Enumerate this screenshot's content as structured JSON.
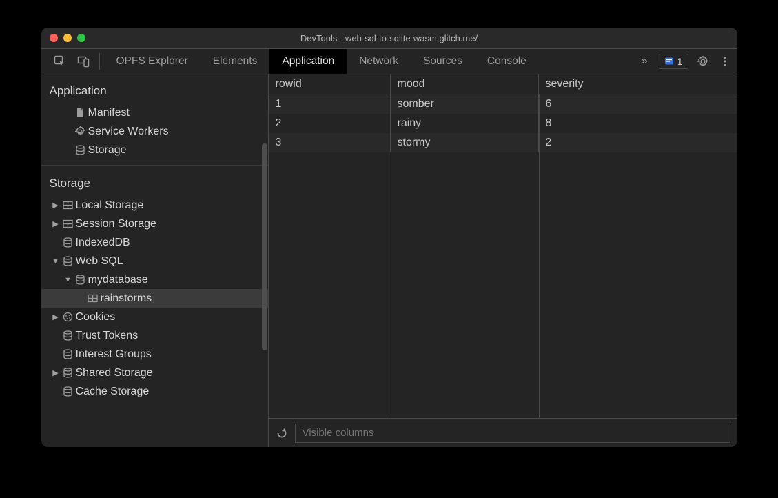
{
  "window": {
    "title": "DevTools - web-sql-to-sqlite-wasm.glitch.me/",
    "traffic_colors": {
      "close": "#ff5f57",
      "min": "#febc2e",
      "max": "#28c840"
    }
  },
  "toolbar": {
    "tabs": [
      {
        "label": "OPFS Explorer",
        "active": false
      },
      {
        "label": "Elements",
        "active": false
      },
      {
        "label": "Application",
        "active": true
      },
      {
        "label": "Network",
        "active": false
      },
      {
        "label": "Sources",
        "active": false
      },
      {
        "label": "Console",
        "active": false
      }
    ],
    "issue_count": "1",
    "issue_color": "#3871e0"
  },
  "sidebar": {
    "section_application": {
      "title": "Application",
      "items": [
        {
          "label": "Manifest",
          "icon": "document"
        },
        {
          "label": "Service Workers",
          "icon": "gear"
        },
        {
          "label": "Storage",
          "icon": "database"
        }
      ]
    },
    "section_storage": {
      "title": "Storage",
      "items": [
        {
          "label": "Local Storage",
          "icon": "grid",
          "arrow": "right",
          "indent": 0
        },
        {
          "label": "Session Storage",
          "icon": "grid",
          "arrow": "right",
          "indent": 0
        },
        {
          "label": "IndexedDB",
          "icon": "database",
          "arrow": "blank",
          "indent": 0
        },
        {
          "label": "Web SQL",
          "icon": "database",
          "arrow": "down",
          "indent": 0
        },
        {
          "label": "mydatabase",
          "icon": "database",
          "arrow": "down",
          "indent": 1
        },
        {
          "label": "rainstorms",
          "icon": "grid",
          "arrow": "blank",
          "indent": 2,
          "selected": true
        },
        {
          "label": "Cookies",
          "icon": "cookie",
          "arrow": "right",
          "indent": 0
        },
        {
          "label": "Trust Tokens",
          "icon": "database",
          "arrow": "blank",
          "indent": 0
        },
        {
          "label": "Interest Groups",
          "icon": "database",
          "arrow": "blank",
          "indent": 0
        },
        {
          "label": "Shared Storage",
          "icon": "database",
          "arrow": "right",
          "indent": 0
        },
        {
          "label": "Cache Storage",
          "icon": "database",
          "arrow": "blank",
          "indent": 0
        }
      ]
    }
  },
  "table": {
    "columns": [
      "rowid",
      "mood",
      "severity"
    ],
    "rows": [
      [
        "1",
        "somber",
        "6"
      ],
      [
        "2",
        "rainy",
        "8"
      ],
      [
        "3",
        "stormy",
        "2"
      ]
    ],
    "filter_placeholder": "Visible columns"
  },
  "colors": {
    "bg": "#242424",
    "border": "#4a4a4a",
    "text": "#c7c7c7",
    "row_alt": "#292929",
    "selected": "#3b3b3b"
  }
}
